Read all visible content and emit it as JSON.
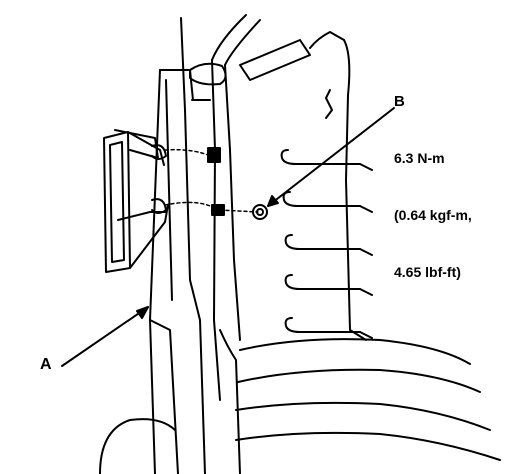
{
  "callouts": {
    "a": "A",
    "b": "B"
  },
  "torque_spec": {
    "metric": "6.3 N-m",
    "kgf": "(0.64 kgf-m,",
    "lbf": "4.65 lbf-ft)"
  },
  "colors": {
    "ink": "#000000",
    "paper": "#ffffff"
  }
}
